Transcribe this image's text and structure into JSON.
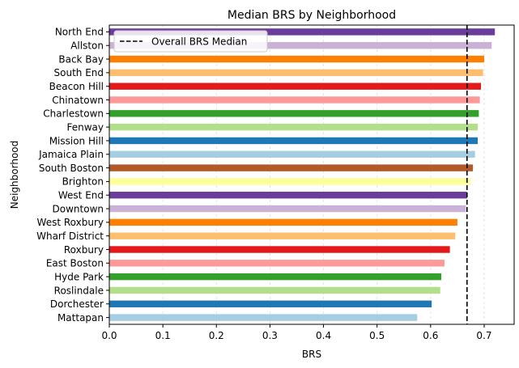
{
  "chart_data": {
    "type": "bar",
    "orientation": "horizontal",
    "title": "Median BRS by Neighborhood",
    "xlabel": "BRS",
    "ylabel": "Neighborhood",
    "xlim": [
      0,
      0.756
    ],
    "xticks": [
      "0.0",
      "0.1",
      "0.2",
      "0.3",
      "0.4",
      "0.5",
      "0.6",
      "0.7"
    ],
    "grid": "vertical dashed",
    "categories": [
      "North End",
      "Allston",
      "Back Bay",
      "South End",
      "Beacon Hill",
      "Chinatown",
      "Charlestown",
      "Fenway",
      "Mission Hill",
      "Jamaica Plain",
      "South Boston",
      "Brighton",
      "West End",
      "Downtown",
      "West Roxbury",
      "Wharf District",
      "Roxbury",
      "East Boston",
      "Hyde Park",
      "Roslindale",
      "Dorchester",
      "Mattapan"
    ],
    "values": [
      0.72,
      0.714,
      0.7,
      0.698,
      0.694,
      0.692,
      0.69,
      0.688,
      0.688,
      0.683,
      0.679,
      0.675,
      0.668,
      0.666,
      0.65,
      0.646,
      0.636,
      0.626,
      0.62,
      0.618,
      0.602,
      0.575
    ],
    "colors": [
      "#6a3d9a",
      "#cab2d6",
      "#ff7f00",
      "#fdbf6f",
      "#e31a1c",
      "#fb9a99",
      "#33a02c",
      "#b2df8a",
      "#1f78b4",
      "#a6cee3",
      "#b15928",
      "#ffff99",
      "#6a3d9a",
      "#cab2d6",
      "#ff7f00",
      "#fdbf6f",
      "#e31a1c",
      "#fb9a99",
      "#33a02c",
      "#b2df8a",
      "#1f78b4",
      "#a6cee3"
    ],
    "reference_line": {
      "label": "Overall BRS Median",
      "value": 0.668,
      "style": "dashed",
      "color": "#000000"
    },
    "legend": {
      "position": "top-left",
      "entries": [
        "Overall BRS Median"
      ]
    }
  }
}
